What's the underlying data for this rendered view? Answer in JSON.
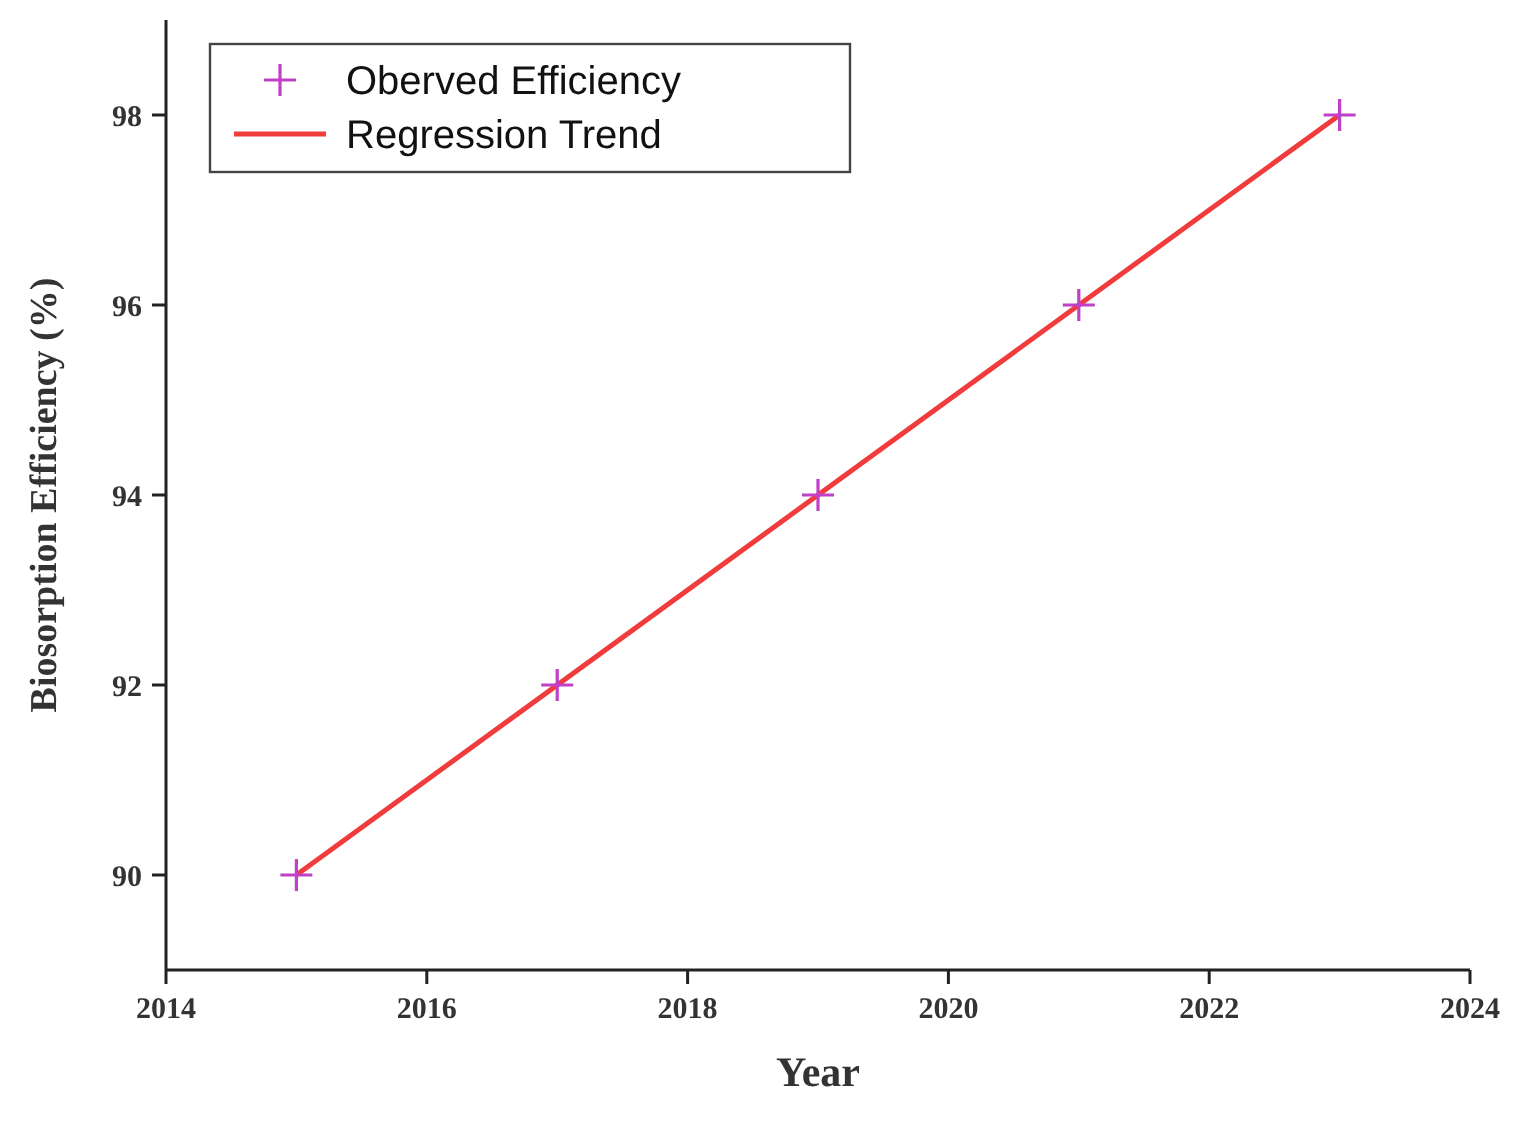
{
  "chart_data": {
    "type": "scatter",
    "xlabel": "Year",
    "ylabel": "Biosorption Efficiency (%)",
    "xlim": [
      2014,
      2024
    ],
    "xticks": [
      2014,
      2016,
      2018,
      2020,
      2022,
      2024
    ],
    "ylim": [
      89,
      99
    ],
    "yticks": [
      90,
      92,
      94,
      96,
      98
    ],
    "legend": "top left",
    "grid": false,
    "series": [
      {
        "name": "Oberved Efficiency",
        "marker": "cross",
        "color": "#c040c8",
        "x": [
          2015,
          2017,
          2019,
          2021,
          2023
        ],
        "values": [
          90,
          92,
          94,
          96,
          98
        ]
      },
      {
        "name": "Regression Trend",
        "type": "line",
        "marker": "none",
        "color": "#f03c3c",
        "line_style": "solid",
        "x": [
          2015,
          2023
        ],
        "values": [
          90,
          98
        ]
      }
    ]
  }
}
